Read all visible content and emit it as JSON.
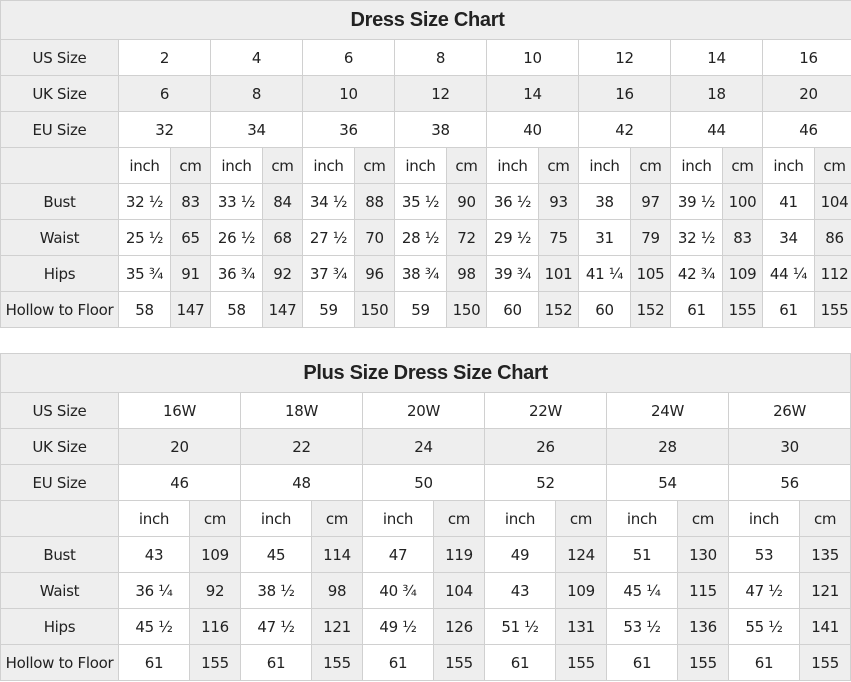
{
  "colors": {
    "header_bg": "#eeeeee",
    "border": "#d0d0d0"
  },
  "standard": {
    "title": "Dress Size Chart",
    "us_label": "US Size",
    "uk_label": "UK Size",
    "eu_label": "EU Size",
    "us": [
      "2",
      "4",
      "6",
      "8",
      "10",
      "12",
      "14",
      "16"
    ],
    "uk": [
      "6",
      "8",
      "10",
      "12",
      "14",
      "16",
      "18",
      "20"
    ],
    "eu": [
      "32",
      "34",
      "36",
      "38",
      "40",
      "42",
      "44",
      "46"
    ],
    "units": [
      "inch",
      "cm"
    ],
    "measurements": [
      {
        "label": "Bust",
        "values": [
          [
            "32 ½",
            "83"
          ],
          [
            "33 ½",
            "84"
          ],
          [
            "34 ½",
            "88"
          ],
          [
            "35 ½",
            "90"
          ],
          [
            "36 ½",
            "93"
          ],
          [
            "38",
            "97"
          ],
          [
            "39 ½",
            "100"
          ],
          [
            "41",
            "104"
          ]
        ]
      },
      {
        "label": "Waist",
        "values": [
          [
            "25 ½",
            "65"
          ],
          [
            "26 ½",
            "68"
          ],
          [
            "27 ½",
            "70"
          ],
          [
            "28 ½",
            "72"
          ],
          [
            "29 ½",
            "75"
          ],
          [
            "31",
            "79"
          ],
          [
            "32 ½",
            "83"
          ],
          [
            "34",
            "86"
          ]
        ]
      },
      {
        "label": "Hips",
        "values": [
          [
            "35 ¾",
            "91"
          ],
          [
            "36 ¾",
            "92"
          ],
          [
            "37 ¾",
            "96"
          ],
          [
            "38 ¾",
            "98"
          ],
          [
            "39 ¾",
            "101"
          ],
          [
            "41 ¼",
            "105"
          ],
          [
            "42 ¾",
            "109"
          ],
          [
            "44 ¼",
            "112"
          ]
        ]
      },
      {
        "label": "Hollow to Floor",
        "values": [
          [
            "58",
            "147"
          ],
          [
            "58",
            "147"
          ],
          [
            "59",
            "150"
          ],
          [
            "59",
            "150"
          ],
          [
            "60",
            "152"
          ],
          [
            "60",
            "152"
          ],
          [
            "61",
            "155"
          ],
          [
            "61",
            "155"
          ]
        ]
      }
    ]
  },
  "plus": {
    "title": "Plus Size Dress Size Chart",
    "us_label": "US Size",
    "uk_label": "UK Size",
    "eu_label": "EU Size",
    "us": [
      "16W",
      "18W",
      "20W",
      "22W",
      "24W",
      "26W"
    ],
    "uk": [
      "20",
      "22",
      "24",
      "26",
      "28",
      "30"
    ],
    "eu": [
      "46",
      "48",
      "50",
      "52",
      "54",
      "56"
    ],
    "units": [
      "inch",
      "cm"
    ],
    "measurements": [
      {
        "label": "Bust",
        "values": [
          [
            "43",
            "109"
          ],
          [
            "45",
            "114"
          ],
          [
            "47",
            "119"
          ],
          [
            "49",
            "124"
          ],
          [
            "51",
            "130"
          ],
          [
            "53",
            "135"
          ]
        ]
      },
      {
        "label": "Waist",
        "values": [
          [
            "36 ¼",
            "92"
          ],
          [
            "38 ½",
            "98"
          ],
          [
            "40 ¾",
            "104"
          ],
          [
            "43",
            "109"
          ],
          [
            "45 ¼",
            "115"
          ],
          [
            "47 ½",
            "121"
          ]
        ]
      },
      {
        "label": "Hips",
        "values": [
          [
            "45 ½",
            "116"
          ],
          [
            "47 ½",
            "121"
          ],
          [
            "49 ½",
            "126"
          ],
          [
            "51 ½",
            "131"
          ],
          [
            "53 ½",
            "136"
          ],
          [
            "55 ½",
            "141"
          ]
        ]
      },
      {
        "label": "Hollow to Floor",
        "values": [
          [
            "61",
            "155"
          ],
          [
            "61",
            "155"
          ],
          [
            "61",
            "155"
          ],
          [
            "61",
            "155"
          ],
          [
            "61",
            "155"
          ],
          [
            "61",
            "155"
          ]
        ]
      }
    ]
  }
}
